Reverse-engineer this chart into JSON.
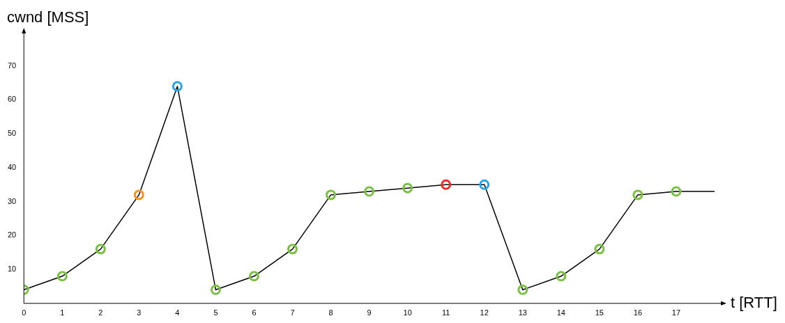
{
  "chart_data": {
    "type": "line",
    "xlabel": "t [RTT]",
    "ylabel": "cwnd [MSS]",
    "xlim": [
      0,
      18.2
    ],
    "xticks": [
      0,
      1,
      2,
      3,
      4,
      5,
      6,
      7,
      8,
      9,
      10,
      11,
      12,
      13,
      14,
      15,
      16,
      17
    ],
    "ylim": [
      0,
      80
    ],
    "yticks": [
      10,
      20,
      30,
      40,
      50,
      60,
      70
    ],
    "grid": false,
    "legend": false,
    "marker": "circle",
    "series": [
      {
        "color": "#000000",
        "x": [
          0,
          1,
          2,
          3,
          4,
          5,
          6,
          7,
          8,
          9,
          10,
          11,
          12,
          13,
          14,
          15,
          16,
          17,
          18
        ],
        "values": [
          4,
          8,
          16,
          32,
          64,
          4,
          8,
          16,
          32,
          33,
          34,
          35,
          35,
          4,
          8,
          16,
          32,
          33,
          33
        ],
        "colors": [
          "#7ac143",
          "#7ac143",
          "#7ac143",
          "#f7931e",
          "#29a3e8",
          "#7ac143",
          "#7ac143",
          "#7ac143",
          "#7ac143",
          "#7ac143",
          "#7ac143",
          "#ee2a24",
          "#29a3e8",
          "#7ac143",
          "#7ac143",
          "#7ac143",
          "#7ac143",
          "#7ac143",
          null
        ]
      }
    ]
  }
}
